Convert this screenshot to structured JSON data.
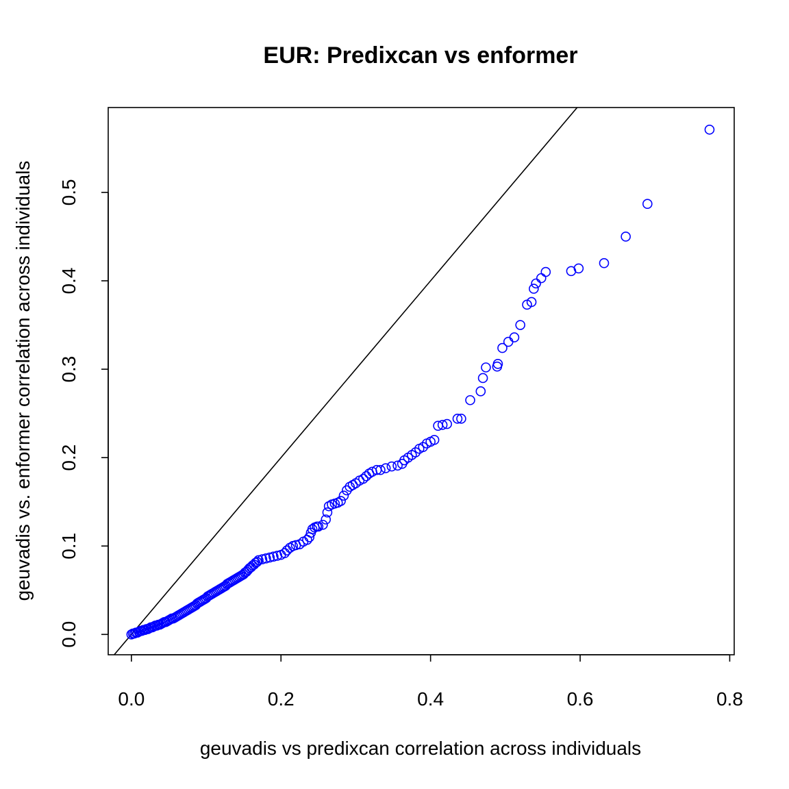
{
  "chart_data": {
    "type": "scatter",
    "title": "EUR: Predixcan vs enformer",
    "xlabel": "geuvadis vs predixcan correlation across individuals",
    "ylabel": "geuvadis vs. enformer correlation across individuals",
    "xlim": [
      -0.031,
      0.806
    ],
    "ylim": [
      -0.023,
      0.596
    ],
    "xticks": [
      "0.0",
      "0.2",
      "0.4",
      "0.6",
      "0.8"
    ],
    "yticks": [
      "0.0",
      "0.1",
      "0.2",
      "0.3",
      "0.4",
      "0.5"
    ],
    "reference_line": {
      "slope": 1,
      "intercept": 0,
      "color": "#000000"
    },
    "point_color": "#0000ff",
    "grid": false,
    "legend": "none",
    "points": [
      [
        0.0,
        0.0
      ],
      [
        0.002,
        0.001
      ],
      [
        0.004,
        0.001
      ],
      [
        0.006,
        0.002
      ],
      [
        0.008,
        0.002
      ],
      [
        0.01,
        0.003
      ],
      [
        0.012,
        0.004
      ],
      [
        0.014,
        0.004
      ],
      [
        0.016,
        0.005
      ],
      [
        0.018,
        0.005
      ],
      [
        0.02,
        0.006
      ],
      [
        0.022,
        0.006
      ],
      [
        0.024,
        0.007
      ],
      [
        0.026,
        0.008
      ],
      [
        0.028,
        0.008
      ],
      [
        0.03,
        0.009
      ],
      [
        0.032,
        0.01
      ],
      [
        0.034,
        0.01
      ],
      [
        0.036,
        0.011
      ],
      [
        0.038,
        0.011
      ],
      [
        0.04,
        0.012
      ],
      [
        0.042,
        0.013
      ],
      [
        0.044,
        0.014
      ],
      [
        0.046,
        0.014
      ],
      [
        0.048,
        0.015
      ],
      [
        0.05,
        0.016
      ],
      [
        0.052,
        0.017
      ],
      [
        0.054,
        0.018
      ],
      [
        0.056,
        0.018
      ],
      [
        0.058,
        0.019
      ],
      [
        0.06,
        0.02
      ],
      [
        0.062,
        0.021
      ],
      [
        0.064,
        0.022
      ],
      [
        0.066,
        0.023
      ],
      [
        0.068,
        0.024
      ],
      [
        0.07,
        0.025
      ],
      [
        0.072,
        0.026
      ],
      [
        0.074,
        0.027
      ],
      [
        0.076,
        0.028
      ],
      [
        0.078,
        0.029
      ],
      [
        0.08,
        0.03
      ],
      [
        0.082,
        0.031
      ],
      [
        0.084,
        0.032
      ],
      [
        0.086,
        0.033
      ],
      [
        0.088,
        0.035
      ],
      [
        0.09,
        0.036
      ],
      [
        0.092,
        0.037
      ],
      [
        0.094,
        0.038
      ],
      [
        0.096,
        0.039
      ],
      [
        0.098,
        0.04
      ],
      [
        0.1,
        0.041
      ],
      [
        0.102,
        0.043
      ],
      [
        0.104,
        0.044
      ],
      [
        0.106,
        0.045
      ],
      [
        0.108,
        0.046
      ],
      [
        0.11,
        0.047
      ],
      [
        0.112,
        0.048
      ],
      [
        0.114,
        0.049
      ],
      [
        0.116,
        0.05
      ],
      [
        0.118,
        0.051
      ],
      [
        0.12,
        0.052
      ],
      [
        0.122,
        0.053
      ],
      [
        0.124,
        0.054
      ],
      [
        0.126,
        0.055
      ],
      [
        0.128,
        0.057
      ],
      [
        0.13,
        0.058
      ],
      [
        0.132,
        0.059
      ],
      [
        0.134,
        0.06
      ],
      [
        0.136,
        0.061
      ],
      [
        0.138,
        0.062
      ],
      [
        0.14,
        0.063
      ],
      [
        0.142,
        0.064
      ],
      [
        0.144,
        0.065
      ],
      [
        0.146,
        0.066
      ],
      [
        0.148,
        0.067
      ],
      [
        0.15,
        0.068
      ],
      [
        0.152,
        0.07
      ],
      [
        0.154,
        0.071
      ],
      [
        0.156,
        0.073
      ],
      [
        0.158,
        0.075
      ],
      [
        0.16,
        0.076
      ],
      [
        0.162,
        0.078
      ],
      [
        0.164,
        0.079
      ],
      [
        0.166,
        0.081
      ],
      [
        0.168,
        0.082
      ],
      [
        0.17,
        0.084
      ],
      [
        0.175,
        0.085
      ],
      [
        0.18,
        0.086
      ],
      [
        0.185,
        0.087
      ],
      [
        0.19,
        0.088
      ],
      [
        0.195,
        0.089
      ],
      [
        0.2,
        0.09
      ],
      [
        0.205,
        0.092
      ],
      [
        0.208,
        0.095
      ],
      [
        0.212,
        0.098
      ],
      [
        0.216,
        0.1
      ],
      [
        0.22,
        0.101
      ],
      [
        0.225,
        0.102
      ],
      [
        0.23,
        0.105
      ],
      [
        0.235,
        0.107
      ],
      [
        0.238,
        0.11
      ],
      [
        0.24,
        0.115
      ],
      [
        0.242,
        0.119
      ],
      [
        0.245,
        0.121
      ],
      [
        0.248,
        0.122
      ],
      [
        0.25,
        0.122
      ],
      [
        0.256,
        0.124
      ],
      [
        0.26,
        0.13
      ],
      [
        0.262,
        0.138
      ],
      [
        0.264,
        0.145
      ],
      [
        0.268,
        0.147
      ],
      [
        0.272,
        0.148
      ],
      [
        0.276,
        0.149
      ],
      [
        0.28,
        0.151
      ],
      [
        0.284,
        0.157
      ],
      [
        0.288,
        0.163
      ],
      [
        0.292,
        0.167
      ],
      [
        0.296,
        0.169
      ],
      [
        0.3,
        0.171
      ],
      [
        0.305,
        0.174
      ],
      [
        0.31,
        0.176
      ],
      [
        0.314,
        0.179
      ],
      [
        0.318,
        0.182
      ],
      [
        0.322,
        0.184
      ],
      [
        0.328,
        0.186
      ],
      [
        0.333,
        0.186
      ],
      [
        0.34,
        0.188
      ],
      [
        0.348,
        0.19
      ],
      [
        0.356,
        0.191
      ],
      [
        0.362,
        0.193
      ],
      [
        0.365,
        0.197
      ],
      [
        0.37,
        0.2
      ],
      [
        0.375,
        0.203
      ],
      [
        0.38,
        0.206
      ],
      [
        0.385,
        0.21
      ],
      [
        0.39,
        0.212
      ],
      [
        0.395,
        0.216
      ],
      [
        0.4,
        0.218
      ],
      [
        0.405,
        0.22
      ],
      [
        0.41,
        0.236
      ],
      [
        0.416,
        0.237
      ],
      [
        0.422,
        0.238
      ],
      [
        0.436,
        0.244
      ],
      [
        0.441,
        0.244
      ],
      [
        0.453,
        0.265
      ],
      [
        0.467,
        0.275
      ],
      [
        0.47,
        0.29
      ],
      [
        0.474,
        0.302
      ],
      [
        0.489,
        0.303
      ],
      [
        0.49,
        0.306
      ],
      [
        0.496,
        0.324
      ],
      [
        0.504,
        0.331
      ],
      [
        0.512,
        0.336
      ],
      [
        0.52,
        0.35
      ],
      [
        0.529,
        0.373
      ],
      [
        0.535,
        0.376
      ],
      [
        0.538,
        0.391
      ],
      [
        0.541,
        0.397
      ],
      [
        0.548,
        0.403
      ],
      [
        0.554,
        0.41
      ],
      [
        0.588,
        0.411
      ],
      [
        0.598,
        0.414
      ],
      [
        0.632,
        0.42
      ],
      [
        0.661,
        0.45
      ],
      [
        0.69,
        0.487
      ],
      [
        0.773,
        0.571
      ]
    ]
  }
}
